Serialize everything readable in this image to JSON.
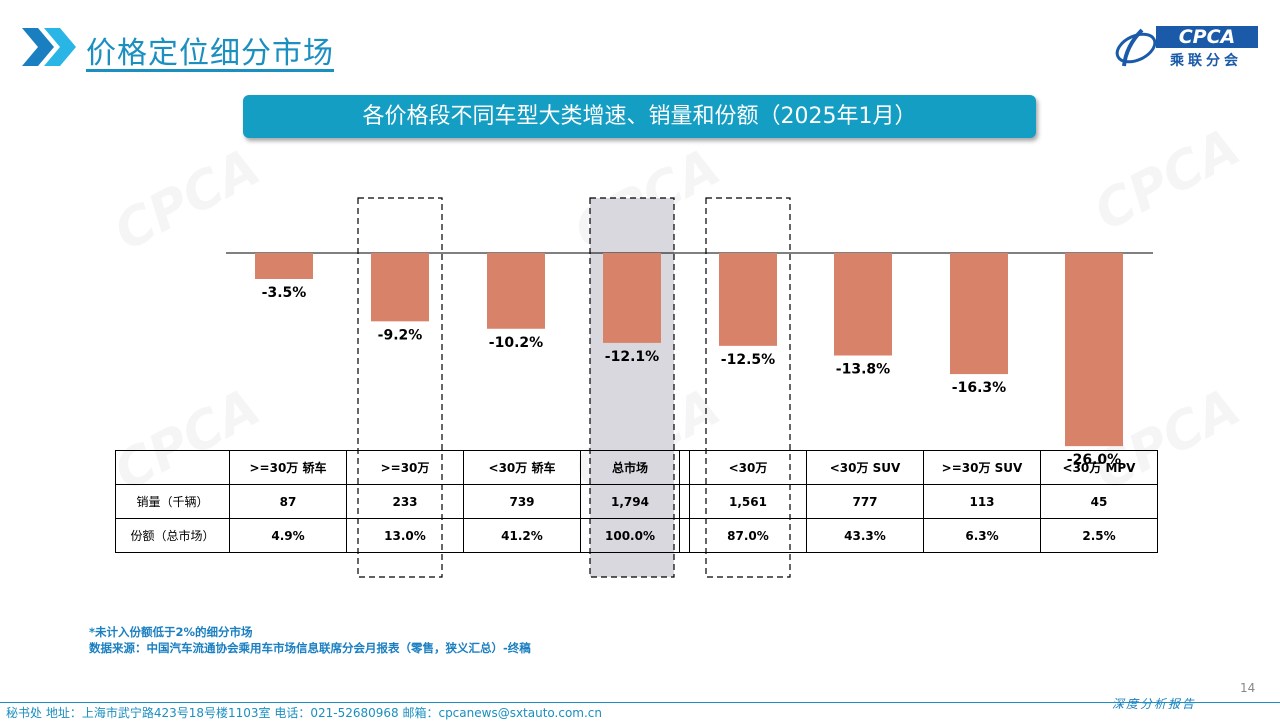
{
  "header": {
    "title": "价格定位细分市场",
    "logo_text": "CPCA",
    "logo_cn": "乘联分会"
  },
  "banner": {
    "title": "各价格段不同车型大类增速、销量和份额（2025年1月）"
  },
  "chart_data": {
    "type": "bar",
    "categories": [
      ">=30万 轿车",
      ">=30万",
      "<30万 轿车",
      "总市场",
      "<30万",
      "<30万 SUV",
      ">=30万 SUV",
      "<30万 MPV"
    ],
    "values": [
      -3.5,
      -9.2,
      -10.2,
      -12.1,
      -12.5,
      -13.8,
      -16.3,
      -26.0
    ],
    "value_labels": [
      "-3.5%",
      "-9.2%",
      "-10.2%",
      "-12.1%",
      "-12.5%",
      "-13.8%",
      "-16.3%",
      "-26.0%"
    ],
    "bar_color": "#d9826a",
    "highlight_color": "#d8d8de",
    "highlighted_categories": [
      ">=30万",
      "总市场",
      "<30万"
    ],
    "highlight_styles": [
      "dashed",
      "shaded",
      "dashed"
    ],
    "ylim": [
      -28,
      0
    ],
    "title": "",
    "xlabel": "",
    "ylabel": ""
  },
  "table": {
    "rows": [
      {
        "label": "销量（千辆）",
        "values": [
          "87",
          "233",
          "739",
          "1,794",
          "1,561",
          "777",
          "113",
          "45"
        ]
      },
      {
        "label": "份额（总市场）",
        "values": [
          "4.9%",
          "13.0%",
          "41.2%",
          "100.0%",
          "87.0%",
          "43.3%",
          "6.3%",
          "2.5%"
        ]
      }
    ]
  },
  "notes": {
    "note1": "*未计入份额低于2%的细分市场",
    "note2": "数据来源：中国汽车流通协会乘用车市场信息联席分会月报表（零售，狭义汇总）-终稿"
  },
  "footer": {
    "contact": "秘书处   地址：上海市武宁路423号18号楼1103室   电话：021-52680968   邮箱：cpcanews@sxtauto.com.cn",
    "page_number": "14",
    "report_tag": "深度分析报告"
  }
}
